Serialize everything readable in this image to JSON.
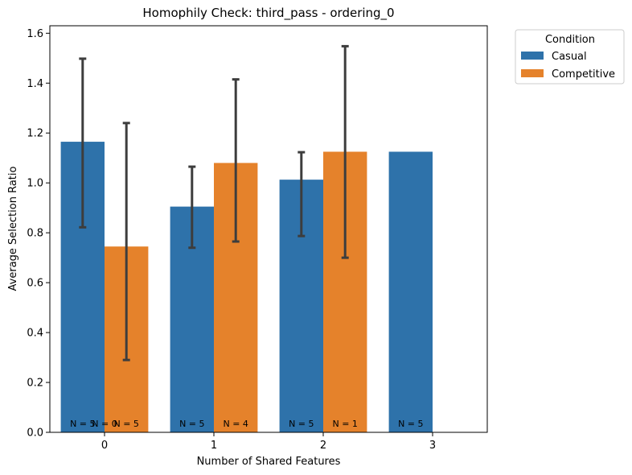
{
  "chart_data": {
    "type": "bar",
    "title": "Homophily Check: third_pass - ordering_0",
    "xlabel": "Number of Shared Features",
    "ylabel": "Average Selection Ratio",
    "categories": [
      "0",
      "1",
      "2",
      "3"
    ],
    "ylim": [
      0,
      1.63
    ],
    "yticks": [
      "0.0",
      "0.2",
      "0.4",
      "0.6",
      "0.8",
      "1.0",
      "1.2",
      "1.4",
      "1.6"
    ],
    "grid": false,
    "legend": {
      "title": "Condition",
      "placement": "outside-top-right"
    },
    "series": [
      {
        "name": "Casual",
        "color": "#2e72aa",
        "values": [
          1.165,
          0.905,
          1.013,
          1.125
        ],
        "err_low": [
          0.822,
          0.74,
          0.787,
          null
        ],
        "err_high": [
          1.498,
          1.065,
          1.123,
          null
        ],
        "n_labels": [
          "N = 5",
          "N = 5",
          "N = 5",
          "N = 5"
        ]
      },
      {
        "name": "Competitive",
        "color": "#e5822b",
        "values": [
          0.745,
          1.08,
          1.125,
          null
        ],
        "err_low": [
          0.29,
          0.765,
          0.7,
          null
        ],
        "err_high": [
          1.24,
          1.415,
          1.548,
          null
        ],
        "n_labels": [
          "N = 5",
          "N = 4",
          "N = 1",
          null
        ]
      }
    ],
    "overlap_label": "N = 0"
  }
}
